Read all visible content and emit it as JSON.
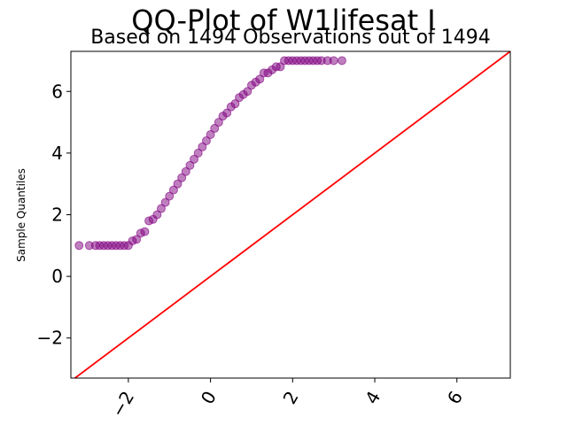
{
  "chart_data": {
    "type": "scatter",
    "title": "QQ-Plot of W1lifesat I",
    "subtitle": "Based on 1494 Observations out of 1494",
    "xlabel": "",
    "ylabel": "Sample Quantiles",
    "xlim": [
      -3.4,
      7.3
    ],
    "ylim": [
      -3.3,
      7.3
    ],
    "x_ticks": [
      -2,
      0,
      2,
      4,
      6
    ],
    "y_ticks": [
      -2,
      0,
      2,
      4,
      6
    ],
    "x_tick_labels": [
      "−2",
      "0",
      "2",
      "4",
      "6"
    ],
    "y_tick_labels": [
      "−2",
      "0",
      "2",
      "4",
      "6"
    ],
    "grid": false,
    "series": [
      {
        "kind": "points",
        "color": "#800080",
        "x": [
          -3.2,
          -2.95,
          -2.8,
          -2.7,
          -2.6,
          -2.5,
          -2.4,
          -2.3,
          -2.2,
          -2.1,
          -2.0,
          -1.9,
          -1.8,
          -1.7,
          -1.6,
          -1.5,
          -1.4,
          -1.3,
          -1.2,
          -1.1,
          -1.0,
          -0.9,
          -0.8,
          -0.7,
          -0.6,
          -0.5,
          -0.4,
          -0.3,
          -0.2,
          -0.1,
          0.0,
          0.1,
          0.2,
          0.3,
          0.4,
          0.5,
          0.6,
          0.7,
          0.8,
          0.9,
          1.0,
          1.1,
          1.2,
          1.3,
          1.4,
          1.5,
          1.6,
          1.7,
          1.8,
          1.9,
          2.0,
          2.1,
          2.2,
          2.3,
          2.4,
          2.5,
          2.6,
          2.7,
          2.85,
          3.0,
          3.2
        ],
        "y": [
          1.0,
          1.0,
          1.0,
          1.0,
          1.0,
          1.0,
          1.0,
          1.0,
          1.0,
          1.0,
          1.0,
          1.15,
          1.2,
          1.4,
          1.45,
          1.8,
          1.85,
          2.0,
          2.2,
          2.4,
          2.6,
          2.8,
          3.0,
          3.2,
          3.4,
          3.6,
          3.8,
          4.0,
          4.2,
          4.4,
          4.6,
          4.8,
          5.0,
          5.2,
          5.3,
          5.5,
          5.6,
          5.8,
          5.9,
          6.0,
          6.2,
          6.3,
          6.4,
          6.6,
          6.6,
          6.7,
          6.8,
          6.8,
          7.0,
          7.0,
          7.0,
          7.0,
          7.0,
          7.0,
          7.0,
          7.0,
          7.0,
          7.0,
          7.0,
          7.0,
          7.0
        ]
      },
      {
        "kind": "reference-line",
        "color": "#ff0000",
        "x": [
          -3.4,
          7.3
        ],
        "y": [
          -3.4,
          7.3
        ]
      }
    ]
  }
}
